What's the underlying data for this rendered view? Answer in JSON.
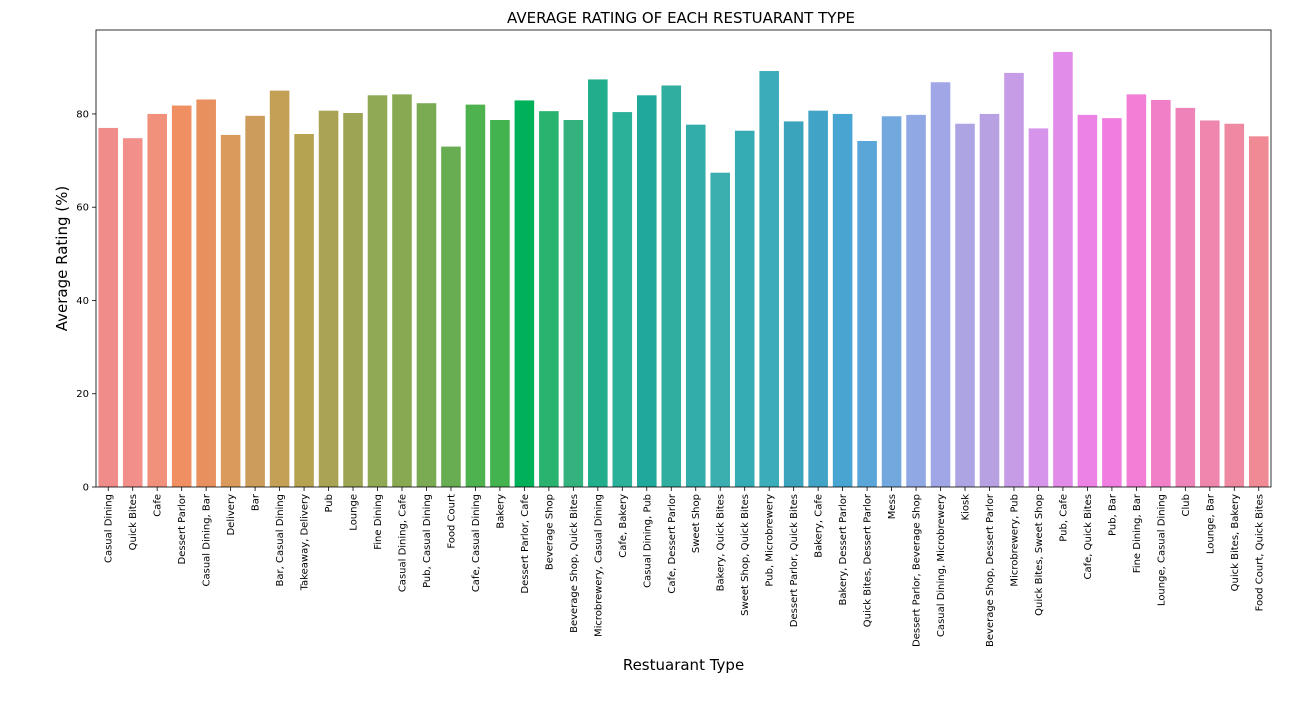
{
  "chart_data": {
    "type": "bar",
    "title": "AVERAGE RATING OF EACH RESTUARANT TYPE",
    "xlabel": "Restuarant Type",
    "ylabel": "Average Rating (%)",
    "ylim": [
      0,
      98
    ],
    "yticks": [
      0,
      20,
      40,
      60,
      80
    ],
    "grid": false,
    "categories": [
      "Casual Dining",
      "Quick Bites",
      "Cafe",
      "Dessert Parlor",
      "Casual Dining, Bar",
      "Delivery",
      "Bar",
      "Bar, Casual Dining",
      "Takeaway, Delivery",
      "Pub",
      "Lounge",
      "Fine Dining",
      "Casual Dining, Cafe",
      "Pub, Casual Dining",
      "Food Court",
      "Cafe, Casual Dining",
      "Bakery",
      "Dessert Parlor, Cafe",
      "Beverage Shop",
      "Beverage Shop, Quick Bites",
      "Microbrewery, Casual Dining",
      "Cafe, Bakery",
      "Casual Dining, Pub",
      "Cafe, Dessert Parlor",
      "Sweet Shop",
      "Bakery, Quick Bites",
      "Sweet Shop, Quick Bites",
      "Pub, Microbrewery",
      "Dessert Parlor, Quick Bites",
      "Bakery, Cafe",
      "Bakery, Dessert Parlor",
      "Quick Bites, Dessert Parlor",
      "Mess",
      "Dessert Parlor, Beverage Shop",
      "Casual Dining, Microbrewery",
      "Kiosk",
      "Beverage Shop, Dessert Parlor",
      "Microbrewery, Pub",
      "Quick Bites, Sweet Shop",
      "Pub, Cafe",
      "Cafe, Quick Bites",
      "Pub, Bar",
      "Fine Dining, Bar",
      "Lounge, Casual Dining",
      "Club",
      "Lounge, Bar",
      "Quick Bites, Bakery",
      "Food Court, Quick Bites"
    ],
    "values": [
      77.0,
      74.8,
      80.0,
      81.8,
      83.1,
      75.5,
      79.6,
      85.0,
      75.7,
      80.7,
      80.2,
      84.0,
      84.2,
      82.3,
      73.0,
      82.0,
      78.7,
      82.9,
      80.6,
      78.7,
      87.4,
      80.4,
      84.0,
      86.1,
      77.7,
      67.4,
      76.4,
      89.2,
      78.4,
      80.7,
      80.0,
      74.2,
      79.5,
      79.8,
      86.8,
      77.9,
      80.0,
      88.8,
      76.9,
      93.3,
      79.8,
      79.1,
      84.2,
      83.0,
      81.3,
      78.6,
      77.9,
      75.2
    ],
    "colors": [
      "#f08d8b",
      "#f28f8b",
      "#f1917c",
      "#ef8f62",
      "#e8905e",
      "#d99a5b",
      "#cc9c5a",
      "#c3a055",
      "#b5a352",
      "#a9a353",
      "#9da453",
      "#8fa954",
      "#88a851",
      "#7aab52",
      "#68ad52",
      "#4eb24e",
      "#42b34f",
      "#00b15a",
      "#2ab36f",
      "#34b27d",
      "#21ae8c",
      "#2bb19a",
      "#1fa99c",
      "#30ae9e",
      "#33ada9",
      "#3bafb0",
      "#35abb3",
      "#3bacb9",
      "#39a4bb",
      "#41a4c6",
      "#48a5d2",
      "#5aa6d8",
      "#73a8df",
      "#90a8e3",
      "#a1a7e6",
      "#ada4e4",
      "#b8a1e3",
      "#c59ce5",
      "#d695ea",
      "#e28cea",
      "#ed82e5",
      "#f07ee1",
      "#f27ed5",
      "#f07fc8",
      "#ee83b9",
      "#ef86ae",
      "#ef89a2",
      "#f08b95"
    ]
  }
}
